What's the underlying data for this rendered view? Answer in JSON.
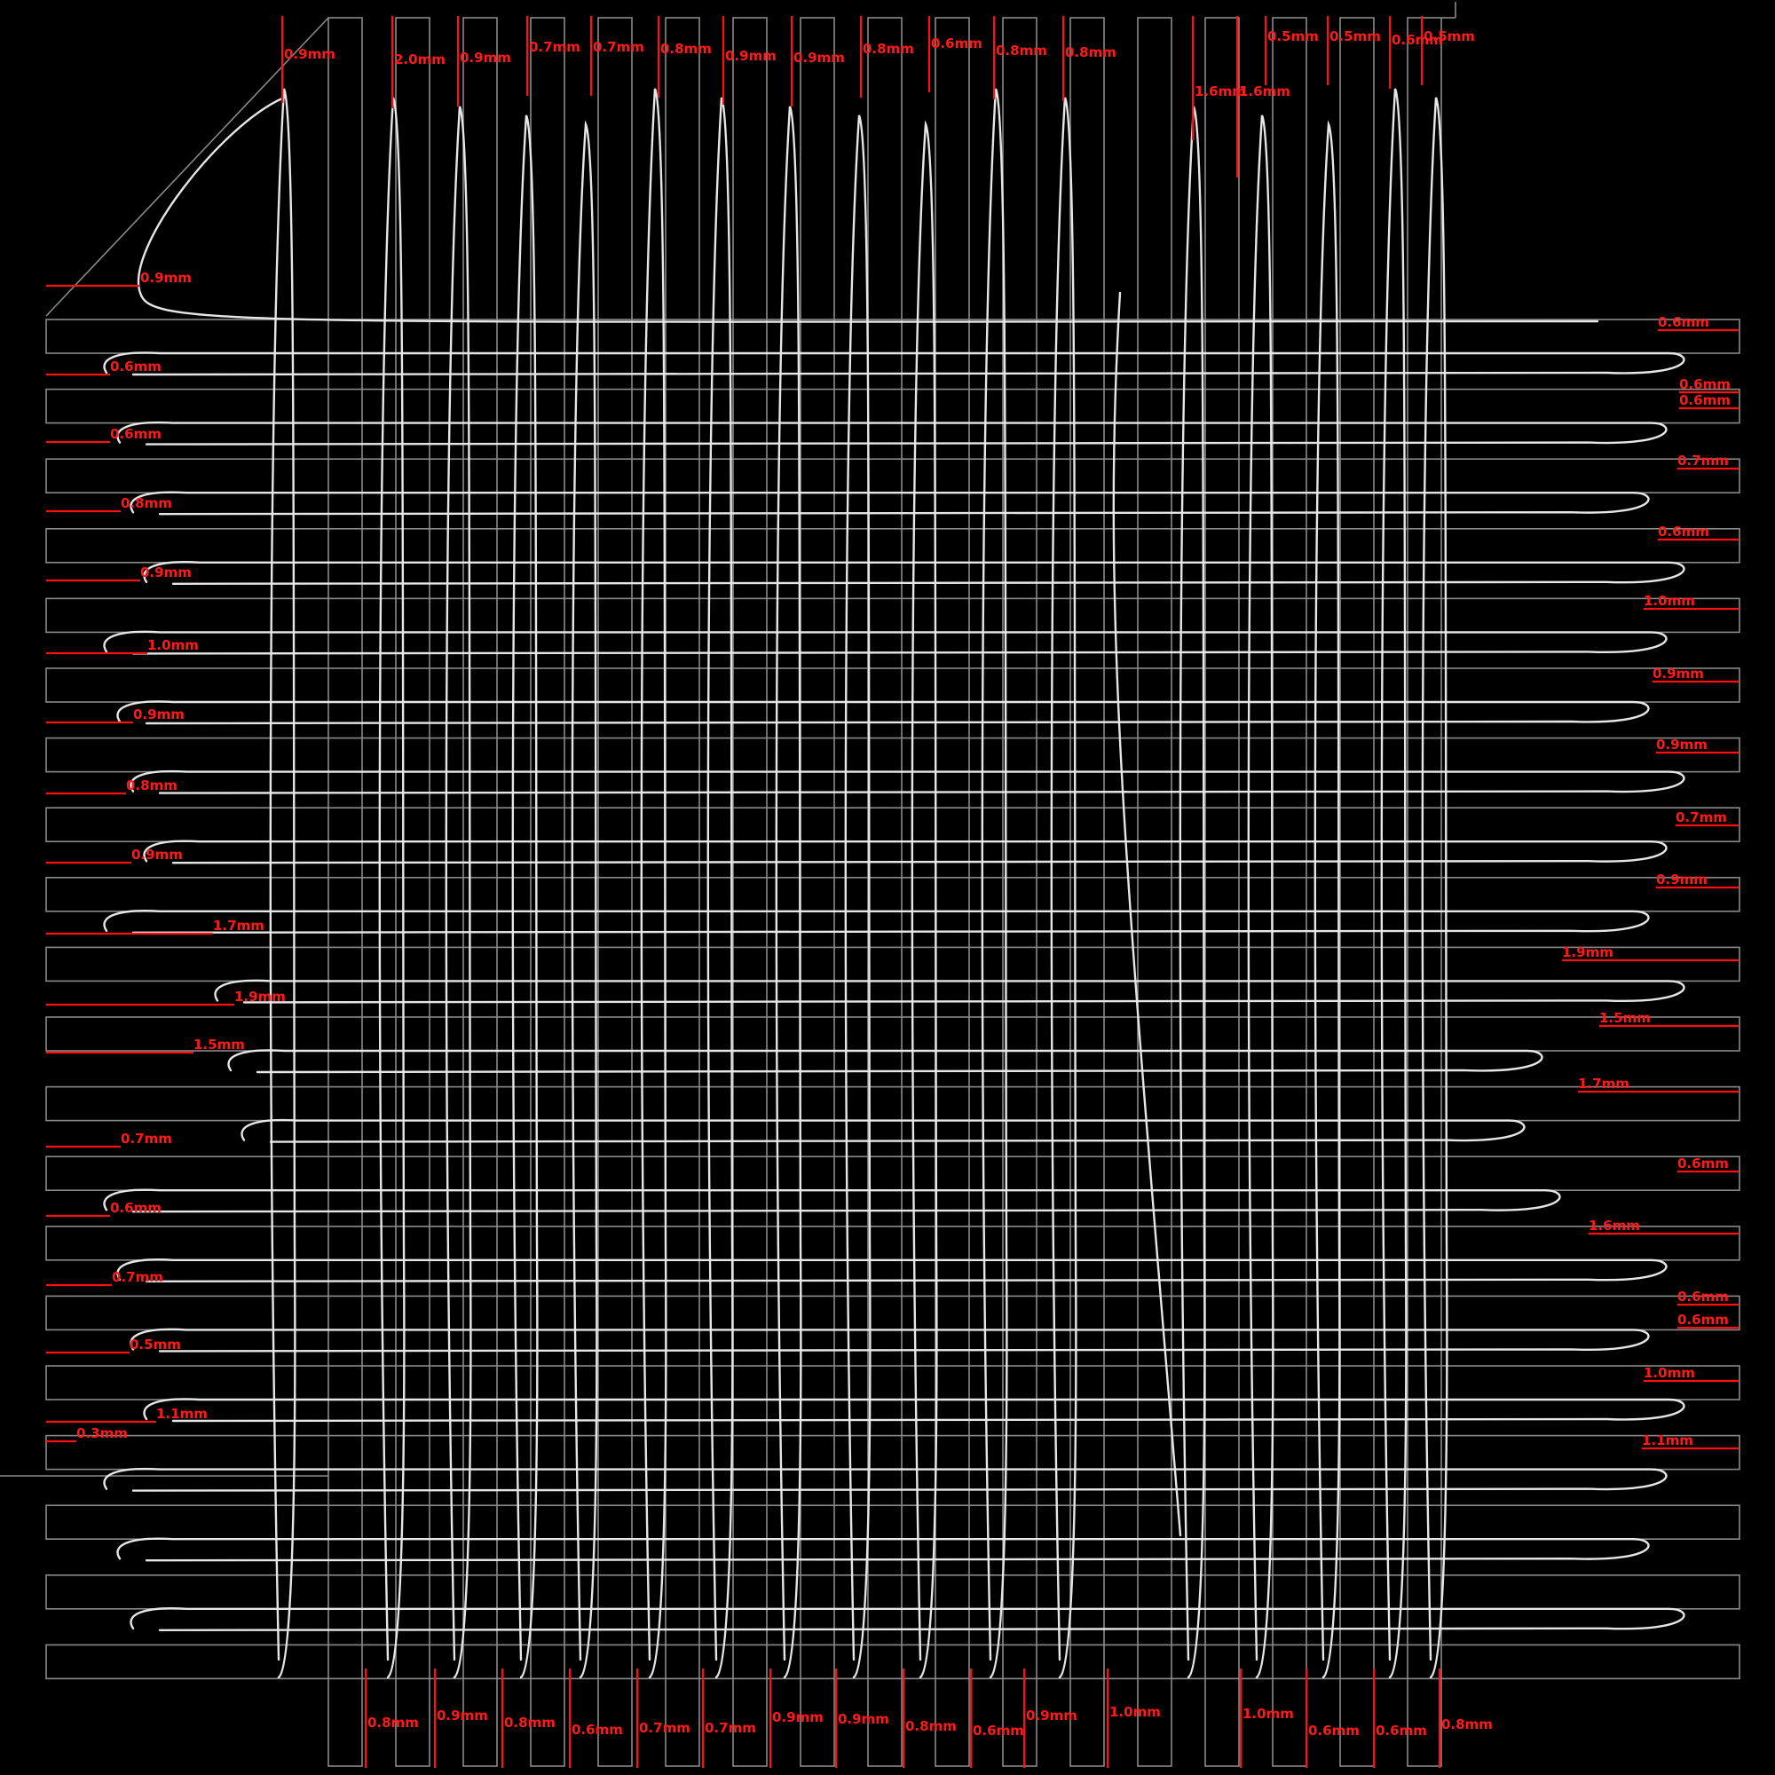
{
  "colors": {
    "background": "#000000",
    "lane_outline": "#8a8a8a",
    "probe_line": "#ff1010",
    "label": "#ff1a1a",
    "trace": "#e6e6e6"
  },
  "top_labels": [
    "0.9mm",
    "2.0mm",
    "0.9mm",
    "0.7mm",
    "0.7mm",
    "0.8mm",
    "0.9mm",
    "0.9mm",
    "0.8mm",
    "0.6mm",
    "0.8mm",
    "0.8mm",
    "1.6mm",
    "1.6mm",
    "0.5mm",
    "0.5mm",
    "0.6mm",
    "0.5mm"
  ],
  "bottom_labels": [
    "0.8mm",
    "0.9mm",
    "0.8mm",
    "0.6mm",
    "0.7mm",
    "0.7mm",
    "0.9mm",
    "0.9mm",
    "0.8mm",
    "0.6mm",
    "0.9mm",
    "1.0mm",
    "1.0mm",
    "0.6mm",
    "0.6mm",
    "0.8mm"
  ],
  "left_labels": [
    "0.9mm",
    "0.6mm",
    "0.6mm",
    "0.8mm",
    "0.9mm",
    "1.0mm",
    "0.9mm",
    "0.8mm",
    "0.9mm",
    "1.7mm",
    "1.9mm",
    "1.5mm",
    "0.7mm",
    "0.6mm",
    "0.7mm",
    "0.5mm",
    "1.1mm",
    "0.3mm"
  ],
  "right_labels": [
    "0.6mm",
    "0.6mm",
    "0.6mm",
    "0.7mm",
    "0.6mm",
    "1.0mm",
    "0.9mm",
    "0.9mm",
    "0.7mm",
    "0.9mm",
    "1.9mm",
    "1.5mm",
    "1.7mm",
    "0.6mm",
    "1.6mm",
    "0.6mm",
    "0.6mm",
    "1.0mm",
    "1.1mm"
  ]
}
